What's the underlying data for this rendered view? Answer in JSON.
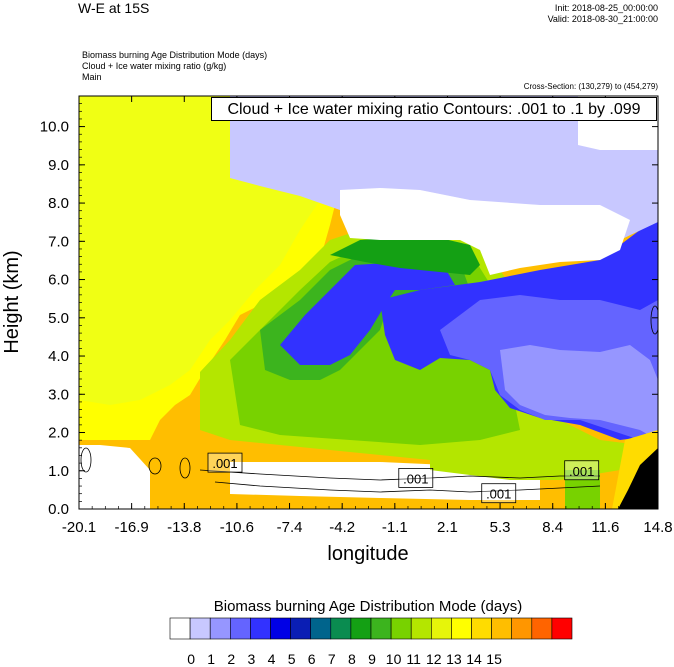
{
  "header": {
    "title": "W-E at 15S",
    "init": "Init: 2018-08-25_00:00:00",
    "valid": "Valid: 2018-08-30_21:00:00",
    "variables": [
      "Biomass burning Age Distribution Mode    (days)",
      "Cloud + Ice water mixing ratio    (g/kg)",
      "Main"
    ],
    "cross_section": "Cross-Section: (130,279) to (454,279)"
  },
  "contour_label": "Cloud + Ice water mixing ratio Contours: .001 to .1 by .099",
  "colorbar": {
    "title": "Biomass burning Age Distribution Mode  (days)",
    "labels": [
      "0",
      "1",
      "2",
      "3",
      "4",
      "5",
      "6",
      "7",
      "8",
      "9",
      "10",
      "11",
      "12",
      "13",
      "14",
      "15"
    ],
    "colors": [
      "#ffffff",
      "#c8c8ff",
      "#9696ff",
      "#6464ff",
      "#3232ff",
      "#0000e6",
      "#0a1eb4",
      "#00648c",
      "#0a8c50",
      "#14a014",
      "#3cb41e",
      "#78d200",
      "#b4e600",
      "#e6f50a",
      "#ffff00",
      "#ffdc00",
      "#ffbe00",
      "#ff9600",
      "#ff6400",
      "#ff0000"
    ]
  },
  "chart_data": {
    "type": "heatmap",
    "title": "Biomass burning Age Distribution Mode (days)",
    "xlabel": "longitude",
    "ylabel": "Height (km)",
    "xlim": [
      -20.1,
      14.8
    ],
    "ylim": [
      0.0,
      10.8
    ],
    "xticks": [
      "-20.1",
      "-16.9",
      "-13.8",
      "-10.6",
      "-7.4",
      "-4.2",
      "-1.1",
      "2.1",
      "5.3",
      "8.4",
      "11.6",
      "14.8"
    ],
    "yticks": [
      "0.0",
      "1.0",
      "2.0",
      "3.0",
      "4.0",
      "5.0",
      "6.0",
      "7.0",
      "8.0",
      "9.0",
      "10.0"
    ],
    "contour_labels": [
      {
        "text": ".001",
        "x": -11.3,
        "y": 1.2
      },
      {
        "text": ".001",
        "x": 0.2,
        "y": 0.8
      },
      {
        "text": ".001",
        "x": 5.2,
        "y": 0.4
      },
      {
        "text": ".001",
        "x": 10.2,
        "y": 1.0
      }
    ]
  }
}
